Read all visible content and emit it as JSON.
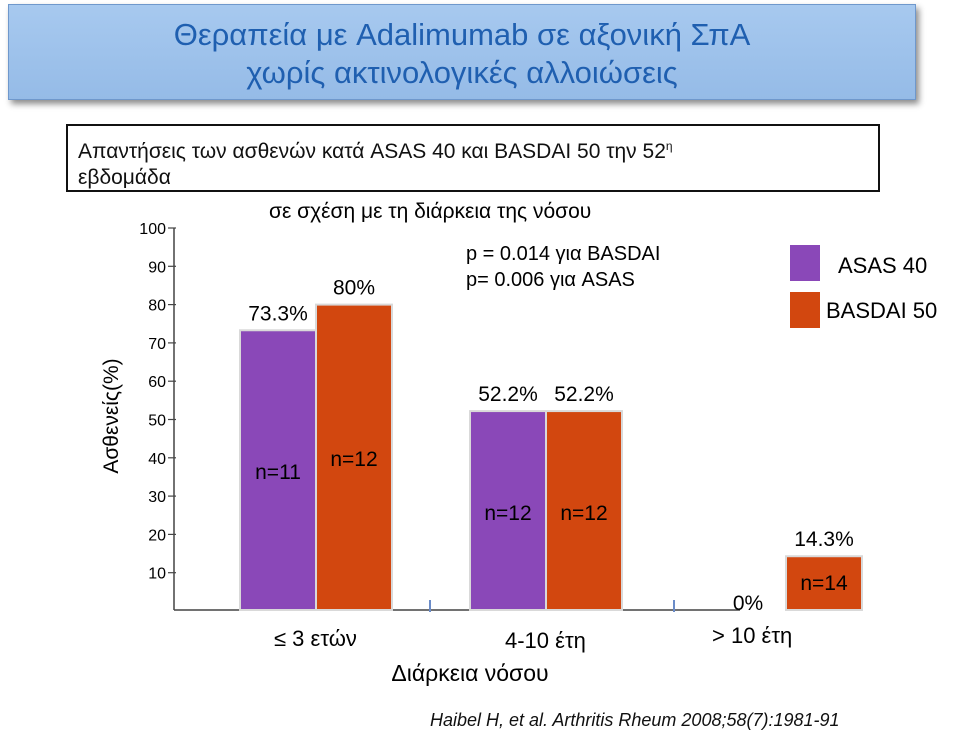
{
  "title": {
    "line1": "Θεραπεία  με Adalimumab σε αξονική ΣπΑ",
    "line2": "χωρίς ακτινολογικές αλλοιώσεις"
  },
  "subtitle": {
    "text": "Απαντήσεις των ασθενών κατά ASAS 40 και BASDAI 50 την 52",
    "sup": "η",
    "line2": "εβδομάδα",
    "line3": "σε σχέση με τη διάρκεια της νόσου"
  },
  "pvalues": [
    "p = 0.014 για BASDAI",
    "p= 0.006 για ASAS"
  ],
  "citation": "Haibel H, et al. Arthritis Rheum 2008;58(7):1981-91",
  "chart_data": {
    "type": "bar",
    "categories": [
      "≤ 3 ετών",
      "4-10 έτη",
      "> 10 έτη"
    ],
    "series": [
      {
        "name": "ASAS 40",
        "color": "#8a48b8",
        "values": [
          73.3,
          52.2,
          0
        ],
        "labels": [
          "73.3%",
          "52.2%",
          "0%"
        ],
        "n": [
          "n=11",
          "n=12",
          ""
        ]
      },
      {
        "name": "BASDAI 50",
        "color": "#d2470f",
        "values": [
          80,
          52.2,
          14.3
        ],
        "labels": [
          "80%",
          "52.2%",
          "14.3%"
        ],
        "n": [
          "n=12",
          "n=12",
          "n=14"
        ]
      }
    ],
    "yticks": [
      100,
      90,
      80,
      70,
      60,
      50,
      40,
      30,
      20,
      10
    ],
    "ylabel": "Ασθενείς(%)",
    "xlabel": "Διάρκεια νόσου",
    "legend": "top-right"
  }
}
